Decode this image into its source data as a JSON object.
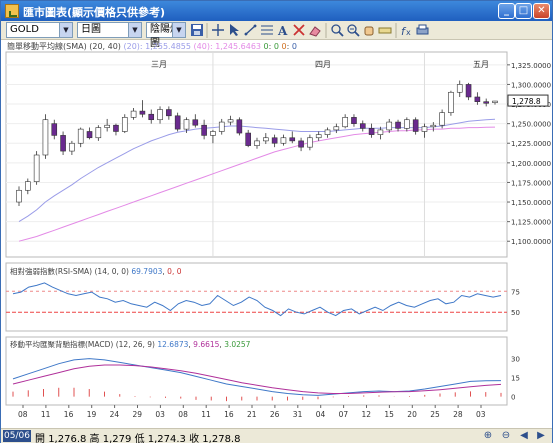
{
  "window": {
    "title": "匯市圖表(顯示價格只供參考)"
  },
  "toolbar": {
    "symbol": "GOLD",
    "period": "日圖",
    "chart_type": "陰陽燭圖"
  },
  "sma": {
    "label": "簡單移動平均線(SMA) (20, 40)",
    "v20_label": "(20):",
    "v20": "1,255.4855",
    "v40_label": "(40):",
    "v40": "1,245.6463",
    "z1": "0",
    "z2": "0",
    "z3": "0",
    "z4": "0"
  },
  "rsi": {
    "label": "相對強弱指數(RSI-SMA)",
    "params": "(14, 0, 0)",
    "value": "69.7903",
    "z": "0, 0"
  },
  "macd": {
    "label": "移動平均匯聚背馳指標(MACD)",
    "params": "(12, 26, 9)",
    "v1": "12.6873",
    "v2": "9.6615",
    "v3": "3.0257"
  },
  "status": {
    "date": "05/06",
    "open_label": "開",
    "open": "1,276.8",
    "high_label": "高",
    "high": "1,279",
    "low_label": "低",
    "low": "1,274.3",
    "close_label": "收",
    "close": "1,278.8"
  },
  "colors": {
    "up": "#ffffff",
    "down": "#6a2a8f",
    "sma20": "#9a9ce8",
    "sma40": "#e38ae6",
    "rsi_line": "#3f78c8",
    "macd_line": "#3f78c8",
    "signal": "#b0309a",
    "hist": "#e05050"
  },
  "chart_data": {
    "type": "candlestick",
    "month_labels": [
      "三月",
      "四月",
      "五月"
    ],
    "x_ticks": [
      "08",
      "11",
      "16",
      "19",
      "24",
      "29",
      "03",
      "08",
      "11",
      "16",
      "21",
      "26",
      "31",
      "04",
      "07",
      "12",
      "15",
      "20",
      "25",
      "28",
      "03"
    ],
    "price_ticks": [
      1325,
      1300,
      1275,
      1250,
      1225,
      1200,
      1175,
      1150,
      1125,
      1100
    ],
    "price_tick_labels": [
      "1,325.0000",
      "1,300.0000",
      "1,275.0000",
      "1,250.0000",
      "1,225.0000",
      "1,200.0000",
      "1,175.0000",
      "1,150.0000",
      "1,125.0000",
      "1,100.0000"
    ],
    "last_price_label": "1,278.8",
    "last_price": 1278.8,
    "ylim": [
      1085,
      1335
    ],
    "candles": [
      [
        1150,
        1170,
        1145,
        1165
      ],
      [
        1165,
        1180,
        1160,
        1176
      ],
      [
        1176,
        1215,
        1172,
        1210
      ],
      [
        1210,
        1262,
        1205,
        1255
      ],
      [
        1250,
        1255,
        1230,
        1235
      ],
      [
        1235,
        1240,
        1210,
        1215
      ],
      [
        1215,
        1228,
        1210,
        1225
      ],
      [
        1225,
        1245,
        1220,
        1243
      ],
      [
        1240,
        1245,
        1230,
        1232
      ],
      [
        1232,
        1248,
        1228,
        1245
      ],
      [
        1245,
        1256,
        1240,
        1248
      ],
      [
        1248,
        1250,
        1235,
        1240
      ],
      [
        1240,
        1262,
        1238,
        1258
      ],
      [
        1258,
        1270,
        1255,
        1266
      ],
      [
        1266,
        1280,
        1258,
        1262
      ],
      [
        1262,
        1268,
        1250,
        1255
      ],
      [
        1255,
        1272,
        1250,
        1268
      ],
      [
        1268,
        1272,
        1255,
        1260
      ],
      [
        1260,
        1264,
        1240,
        1243
      ],
      [
        1243,
        1258,
        1238,
        1255
      ],
      [
        1255,
        1262,
        1245,
        1248
      ],
      [
        1248,
        1255,
        1230,
        1235
      ],
      [
        1235,
        1242,
        1225,
        1240
      ],
      [
        1240,
        1256,
        1236,
        1252
      ],
      [
        1252,
        1260,
        1248,
        1255
      ],
      [
        1255,
        1258,
        1235,
        1238
      ],
      [
        1238,
        1242,
        1220,
        1222
      ],
      [
        1222,
        1232,
        1218,
        1228
      ],
      [
        1228,
        1238,
        1224,
        1232
      ],
      [
        1232,
        1236,
        1220,
        1225
      ],
      [
        1225,
        1236,
        1222,
        1232
      ],
      [
        1232,
        1240,
        1225,
        1228
      ],
      [
        1228,
        1232,
        1215,
        1220
      ],
      [
        1220,
        1236,
        1216,
        1232
      ],
      [
        1232,
        1240,
        1228,
        1236
      ],
      [
        1236,
        1245,
        1232,
        1242
      ],
      [
        1242,
        1250,
        1238,
        1246
      ],
      [
        1246,
        1262,
        1244,
        1258
      ],
      [
        1258,
        1262,
        1246,
        1250
      ],
      [
        1250,
        1254,
        1240,
        1244
      ],
      [
        1244,
        1250,
        1232,
        1236
      ],
      [
        1236,
        1246,
        1230,
        1242
      ],
      [
        1242,
        1256,
        1238,
        1252
      ],
      [
        1252,
        1255,
        1240,
        1244
      ],
      [
        1244,
        1258,
        1240,
        1255
      ],
      [
        1255,
        1258,
        1236,
        1240
      ],
      [
        1240,
        1250,
        1232,
        1246
      ],
      [
        1246,
        1252,
        1240,
        1248
      ],
      [
        1248,
        1268,
        1244,
        1264
      ],
      [
        1264,
        1292,
        1260,
        1290
      ],
      [
        1290,
        1305,
        1284,
        1300
      ],
      [
        1300,
        1302,
        1280,
        1284
      ],
      [
        1284,
        1290,
        1274,
        1278
      ],
      [
        1278,
        1282,
        1272,
        1276
      ],
      [
        1276.8,
        1279,
        1274.3,
        1278.8
      ]
    ],
    "sma20": [
      1125,
      1132,
      1140,
      1150,
      1158,
      1165,
      1172,
      1180,
      1187,
      1194,
      1200,
      1206,
      1212,
      1218,
      1223,
      1228,
      1232,
      1236,
      1239,
      1241,
      1243,
      1244,
      1245,
      1246,
      1247,
      1247,
      1246,
      1245,
      1244,
      1243,
      1242,
      1241,
      1240,
      1240,
      1240,
      1240,
      1241,
      1242,
      1243,
      1244,
      1244,
      1244,
      1245,
      1245,
      1245,
      1245,
      1245,
      1246,
      1247,
      1249,
      1251,
      1253,
      1254,
      1255,
      1255.5
    ],
    "sma40": [
      1100,
      1103,
      1106,
      1110,
      1114,
      1118,
      1122,
      1126,
      1130,
      1134,
      1138,
      1142,
      1146,
      1150,
      1154,
      1158,
      1162,
      1166,
      1170,
      1174,
      1178,
      1182,
      1186,
      1190,
      1194,
      1198,
      1202,
      1206,
      1210,
      1214,
      1217,
      1220,
      1223,
      1226,
      1228,
      1230,
      1232,
      1234,
      1236,
      1237,
      1238,
      1239,
      1240,
      1241,
      1241,
      1242,
      1242,
      1243,
      1243,
      1244,
      1244,
      1245,
      1245,
      1245.5,
      1245.6
    ],
    "rsi": {
      "ticks": [
        75,
        50
      ],
      "ylim": [
        30,
        92
      ],
      "values": [
        72,
        74,
        80,
        82,
        85,
        80,
        76,
        72,
        70,
        72,
        74,
        68,
        66,
        62,
        64,
        60,
        58,
        56,
        62,
        58,
        52,
        60,
        64,
        62,
        58,
        60,
        70,
        64,
        58,
        62,
        68,
        64,
        56,
        52,
        46,
        54,
        50,
        48,
        52,
        56,
        50,
        46,
        52,
        54,
        48,
        52,
        56,
        52,
        58,
        62,
        58,
        56,
        60,
        64,
        66,
        60,
        62,
        70,
        68,
        72,
        70,
        68,
        70
      ]
    },
    "macd": {
      "ticks": [
        30,
        15,
        0
      ],
      "ylim": [
        -5,
        36
      ],
      "macd": [
        14,
        18,
        22,
        26,
        29,
        30,
        29,
        27,
        25,
        23,
        21,
        19,
        16,
        13,
        10,
        8,
        6,
        4,
        2.5,
        1.5,
        1,
        2,
        3,
        4,
        4.5,
        4,
        4.5,
        6,
        8,
        10,
        12,
        12.5,
        12.7
      ],
      "signal": [
        10,
        13,
        16,
        19,
        22,
        24,
        25,
        25,
        24.5,
        23.5,
        22,
        20.5,
        18.5,
        16,
        13.5,
        11,
        9,
        7,
        5.5,
        4,
        3,
        2.5,
        2.5,
        3,
        3.5,
        3.8,
        4,
        4.6,
        5.5,
        6.6,
        7.8,
        8.9,
        9.7
      ],
      "hist": [
        4,
        5,
        6,
        7,
        7,
        6,
        4,
        2,
        0.5,
        -0.5,
        -1,
        -1.5,
        -2.5,
        -3,
        -3.5,
        -3,
        -3,
        -3,
        -3,
        -2.5,
        -2,
        -0.5,
        0.5,
        1,
        1,
        0.2,
        0.5,
        1.4,
        2.5,
        3.4,
        4.2,
        3.6,
        3
      ]
    }
  }
}
